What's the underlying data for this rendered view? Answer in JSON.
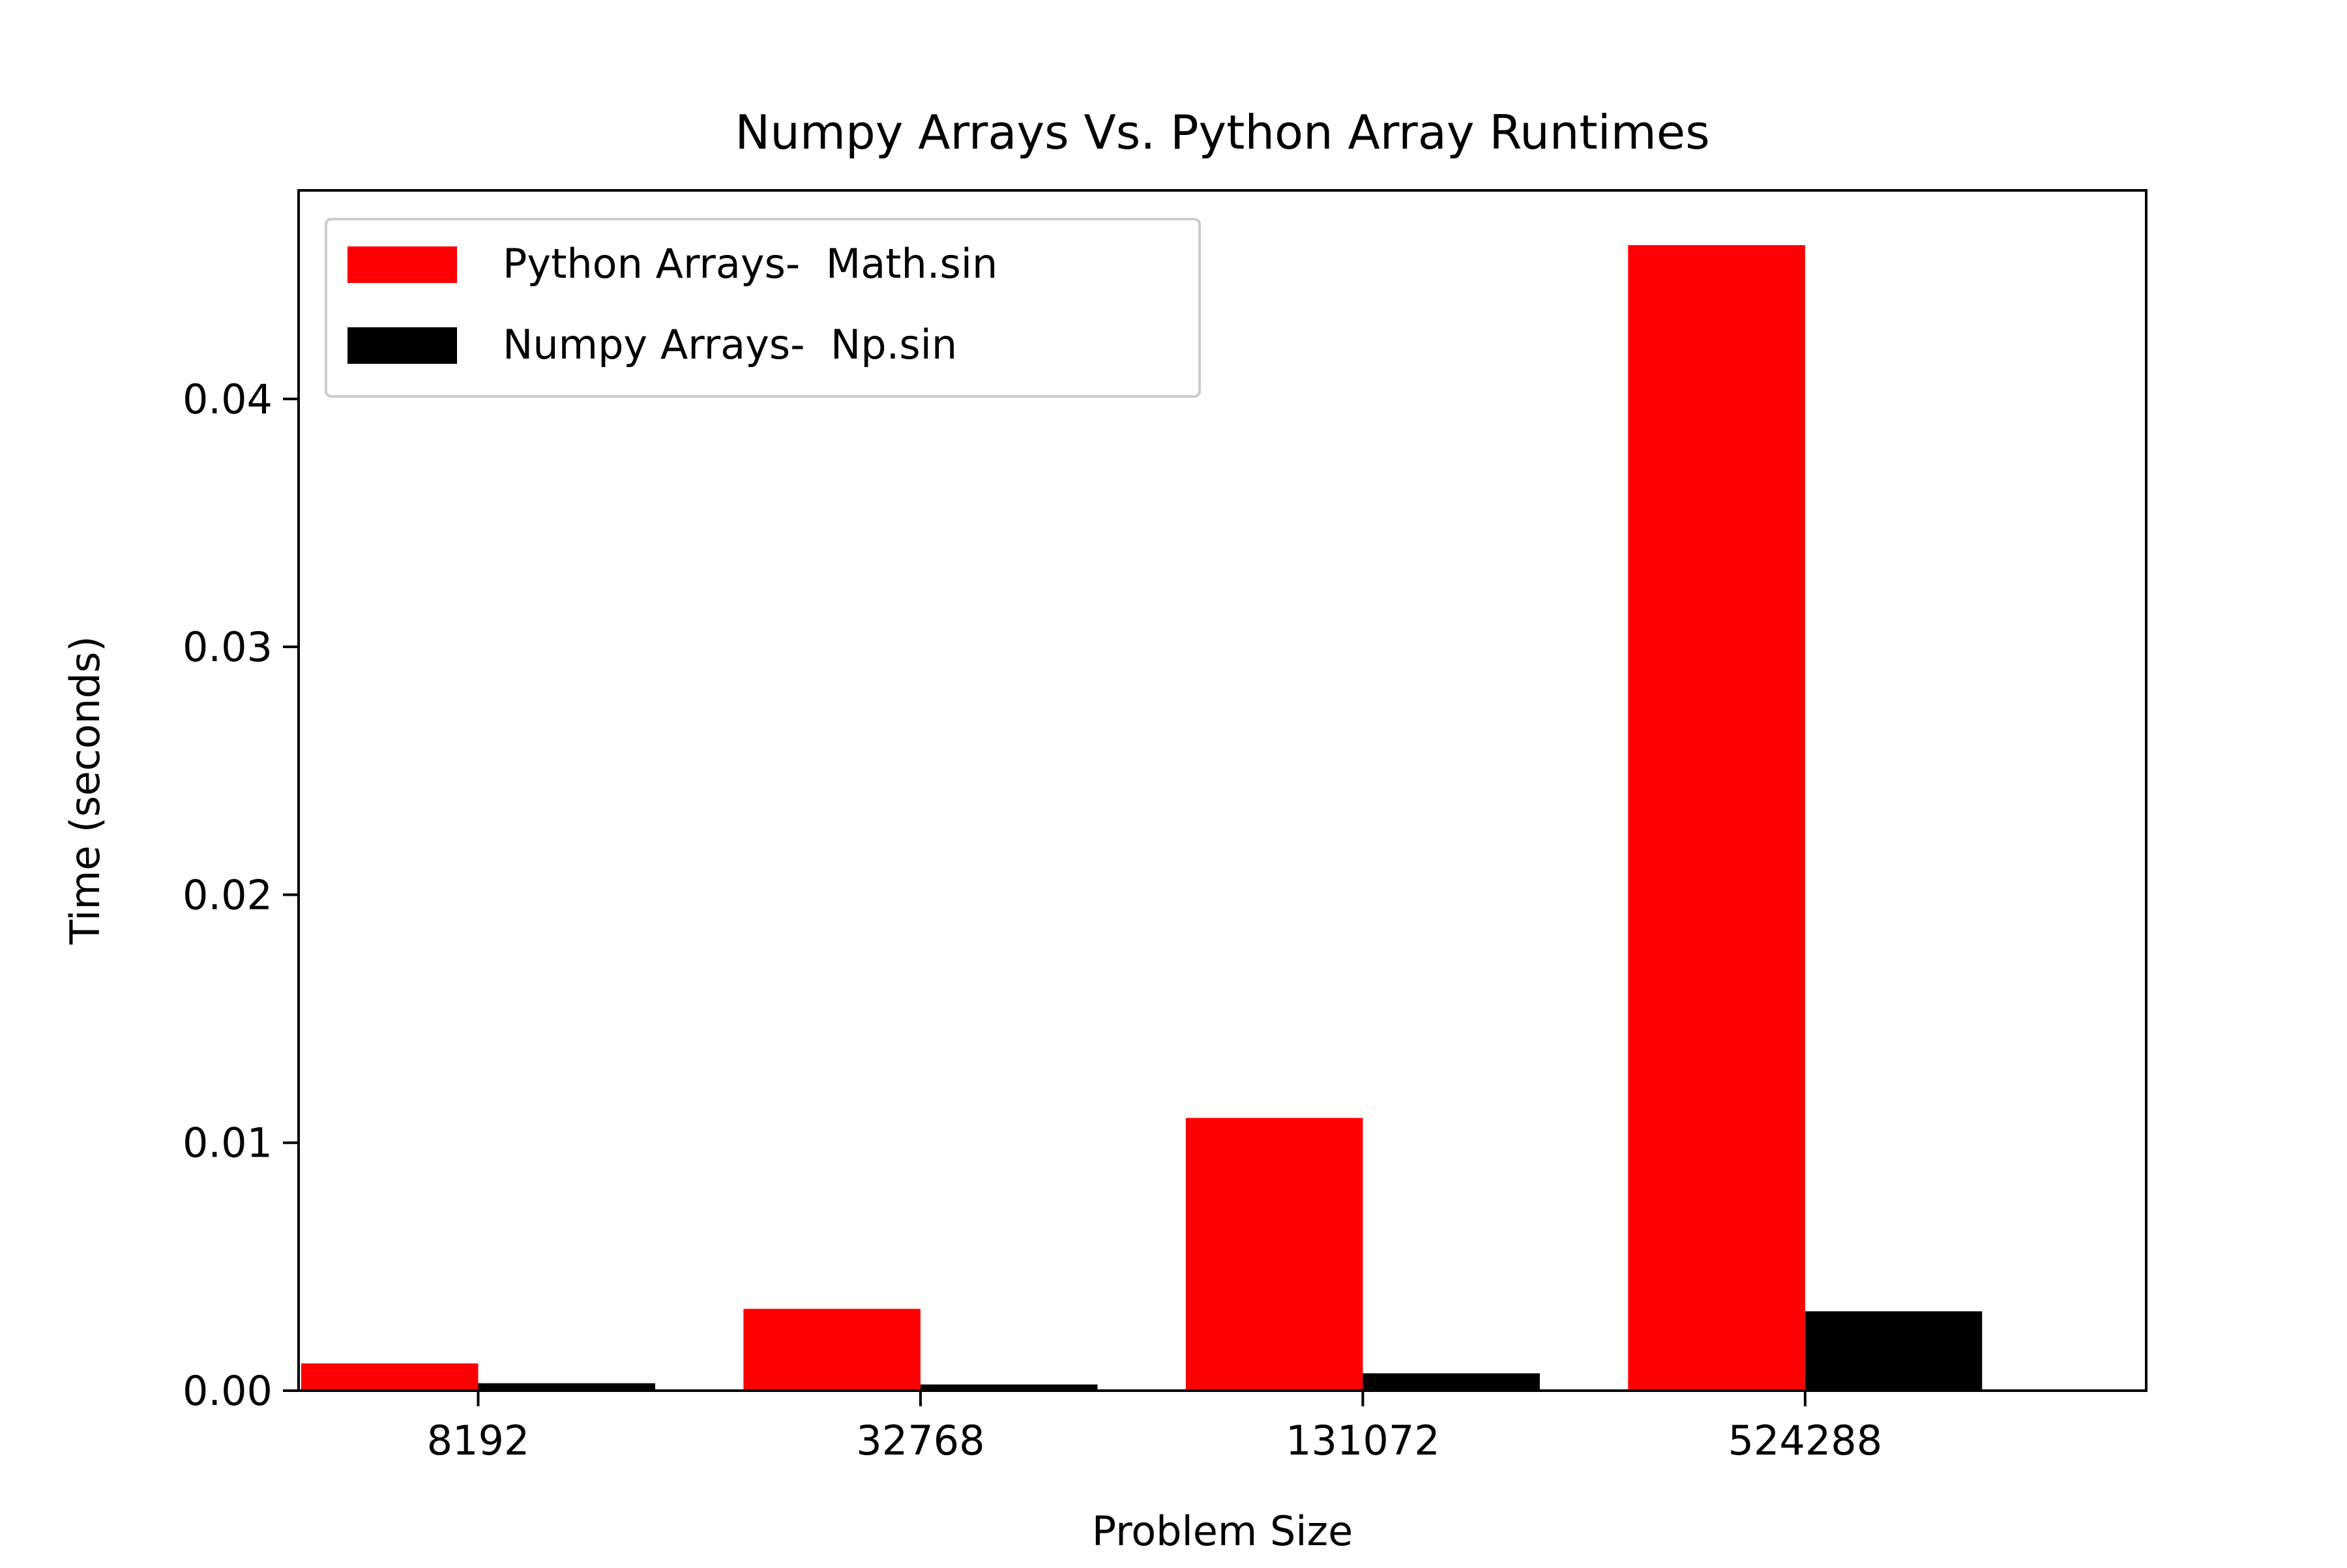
{
  "chart_data": {
    "type": "bar",
    "title": "Numpy Arrays Vs. Python Array Runtimes",
    "xlabel": "Problem Size",
    "ylabel": "Time (seconds)",
    "categories": [
      "8192",
      "32768",
      "131072",
      "524288"
    ],
    "series": [
      {
        "name": "Python Arrays-  Math.sin",
        "color": "#ff0000",
        "values": [
          0.0011,
          0.0033,
          0.011,
          0.0462
        ]
      },
      {
        "name": "Numpy Arrays-  Np.sin",
        "color": "#000000",
        "values": [
          0.0003,
          0.00025,
          0.0007,
          0.0032
        ]
      }
    ],
    "ylim": [
      0,
      0.04841
    ],
    "yticks": [
      0.0,
      0.01,
      0.02,
      0.03,
      0.04
    ],
    "ytick_labels": [
      "0.00",
      "0.01",
      "0.02",
      "0.03",
      "0.04"
    ],
    "grid": false,
    "legend_position": "top-left"
  }
}
